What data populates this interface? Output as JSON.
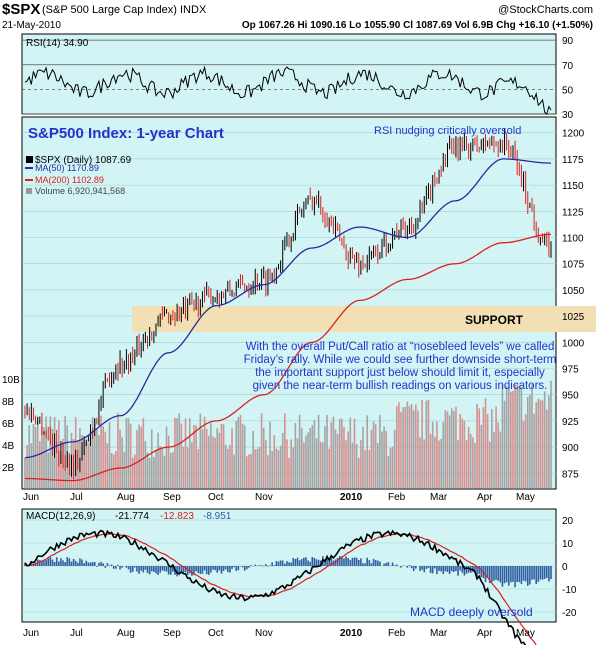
{
  "header": {
    "symbol": "$SPX",
    "name": "(S&P 500 Large Cap Index) INDX",
    "watermark": "@StockCharts.com",
    "date": "21-May-2010",
    "quote": "Op 1067.26  Hi 1090.16  Lo 1055.90  Cl 1087.69  Vol 6.9B  Chg +16.10 (+1.50%)"
  },
  "colors": {
    "panel_bg": "#d2f4f4",
    "support_band": "#f3dfb4",
    "title_blue": "#2233cc",
    "ma50": "#2a2aa0",
    "ma200": "#dd1f1f",
    "macd_line": "#000000",
    "signal_line": "#dd1f1f",
    "histogram": "#2f5fa0"
  },
  "rsi_panel": {
    "legend": "RSI(14) 34.90",
    "ticks": [
      "90",
      "70",
      "50",
      "30"
    ],
    "annotation": "RSI nudging critically oversold"
  },
  "price_panel": {
    "chart_title": "S&P500 Index: 1-year Chart",
    "legend_price": "$SPX (Daily) 1087.69",
    "legend_ma50": "MA(50) 1170.89",
    "legend_ma200": "MA(200) 1102.89",
    "legend_volume": "Volume 6,920,941,568",
    "support_label": "SUPPORT",
    "commentary_1": "With the overall Put/Call ratio at “nosebleed levels” we called",
    "commentary_2": "Friday’s rally. While we could see further downside short-term",
    "commentary_3": "the important support just below should limit it, especially",
    "commentary_4": "given the near-term bullish readings on various indicators.",
    "price_ticks": [
      "1200",
      "1175",
      "1150",
      "1125",
      "1100",
      "1075",
      "1050",
      "1025",
      "1000",
      "975",
      "950",
      "925",
      "900",
      "875"
    ],
    "volume_ticks": [
      "10B",
      "8B",
      "6B",
      "4B",
      "2B"
    ]
  },
  "macd_panel": {
    "legend_label": "MACD(12,26,9)",
    "legend_macd": "-21.774",
    "legend_signal": "-12.823",
    "legend_hist": "-8.951",
    "ticks": [
      "20",
      "10",
      "0",
      "-10",
      "-20"
    ],
    "annotation": "MACD deeply oversold"
  },
  "x_axis_labels": [
    "Jun",
    "Jul",
    "Aug",
    "Sep",
    "Oct",
    "Nov",
    "2010",
    "Feb",
    "Mar",
    "Apr",
    "May"
  ],
  "chart_data": {
    "type": "line",
    "title": "S&P500 Index: 1-year Chart",
    "x": [
      "Jun",
      "Jul",
      "Aug",
      "Sep",
      "Oct",
      "Nov",
      "2010",
      "Feb",
      "Mar",
      "Apr",
      "May",
      "May-21"
    ],
    "series": [
      {
        "name": "$SPX (Daily)",
        "values": [
          935,
          885,
          980,
          1025,
          1045,
          1060,
          1135,
          1075,
          1110,
          1185,
          1190,
          1088
        ]
      },
      {
        "name": "MA(50)",
        "values": [
          890,
          905,
          930,
          990,
          1035,
          1055,
          1090,
          1110,
          1100,
          1135,
          1175,
          1171
        ]
      },
      {
        "name": "MA(200)",
        "values": [
          870,
          868,
          880,
          900,
          925,
          950,
          1000,
          1040,
          1060,
          1075,
          1095,
          1103
        ]
      }
    ],
    "support_zone": [
      1022,
      1047
    ],
    "ylim": [
      860,
      1215
    ],
    "rsi_ylim": [
      30,
      90
    ],
    "macd_ylim": [
      -25,
      25
    ]
  }
}
